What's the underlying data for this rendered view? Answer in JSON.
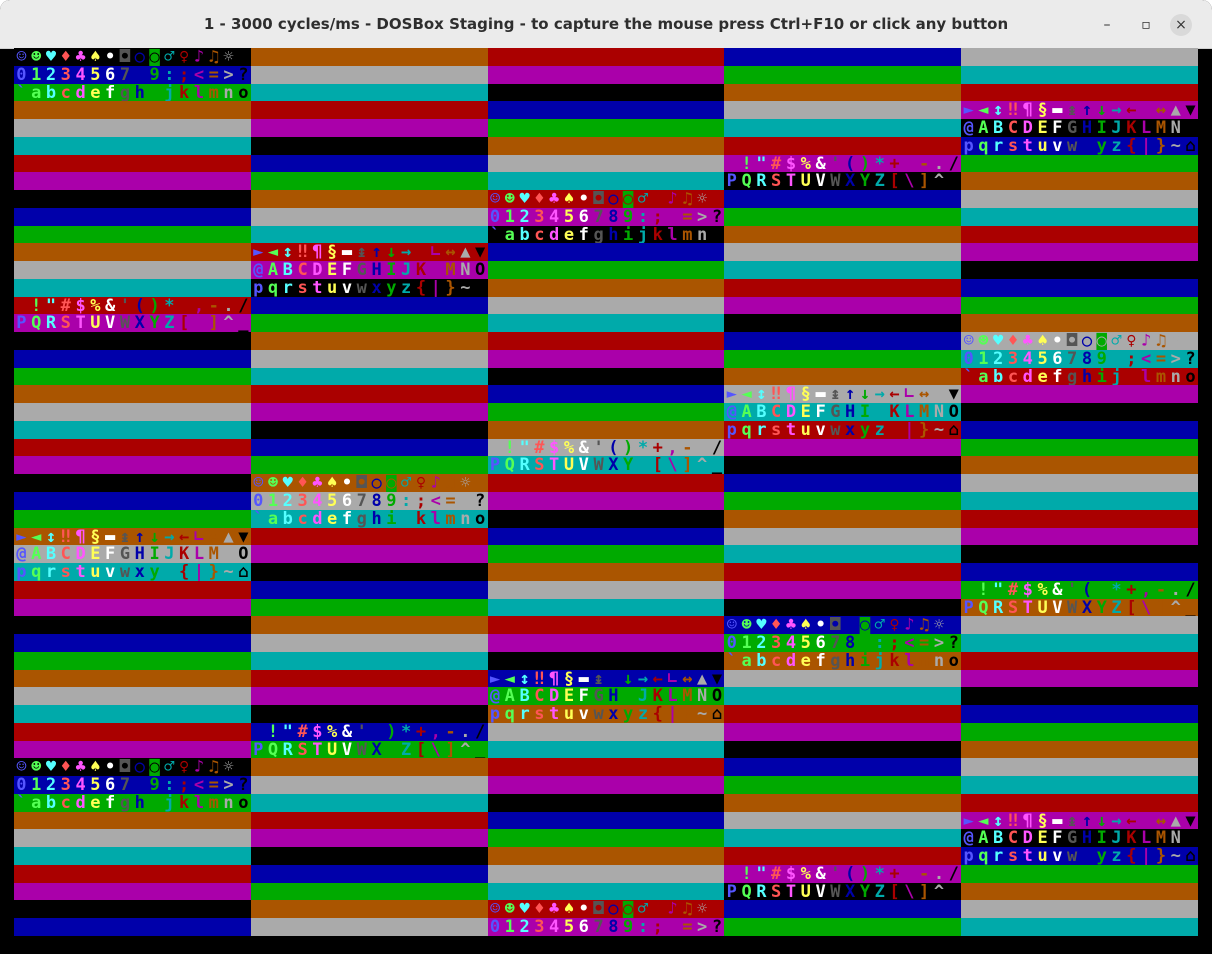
{
  "window": {
    "title": "1 - 3000 cycles/ms - DOSBox Staging - to capture the mouse press Ctrl+F10 or click any button",
    "controls": {
      "minimize": "–",
      "maximize": "▫",
      "close": "×"
    }
  },
  "screen": {
    "text_row_cycle": [
      "☺☻♥♦♣♠•◘○◙♂♀♪♫☼",
      "►◄↕‼¶§▬↨↑↓→←∟↔▲▼",
      " !\"#$%&'()*+,-./",
      "0123456789:;<=>?",
      "@ABCDEFGHIJKLMNO",
      "PQRSTUVWXYZ[\\]^_",
      "`abcdefghijklmno",
      "pqrstuvwxyz{|}~⌂"
    ],
    "palette": {
      "black": "#000000",
      "blue": "#0000aa",
      "green": "#00aa00",
      "cyan": "#00aaaa",
      "red": "#aa0000",
      "magenta": "#aa00aa",
      "brown": "#aa5500",
      "light_gray": "#aaaaaa",
      "dark_gray": "#555555",
      "light_blue": "#5555ff",
      "light_green": "#55ff55",
      "light_cyan": "#55ffff",
      "light_red": "#ff5555",
      "light_magenta": "#ff55ff",
      "yellow": "#ffff55",
      "white": "#ffffff"
    }
  }
}
